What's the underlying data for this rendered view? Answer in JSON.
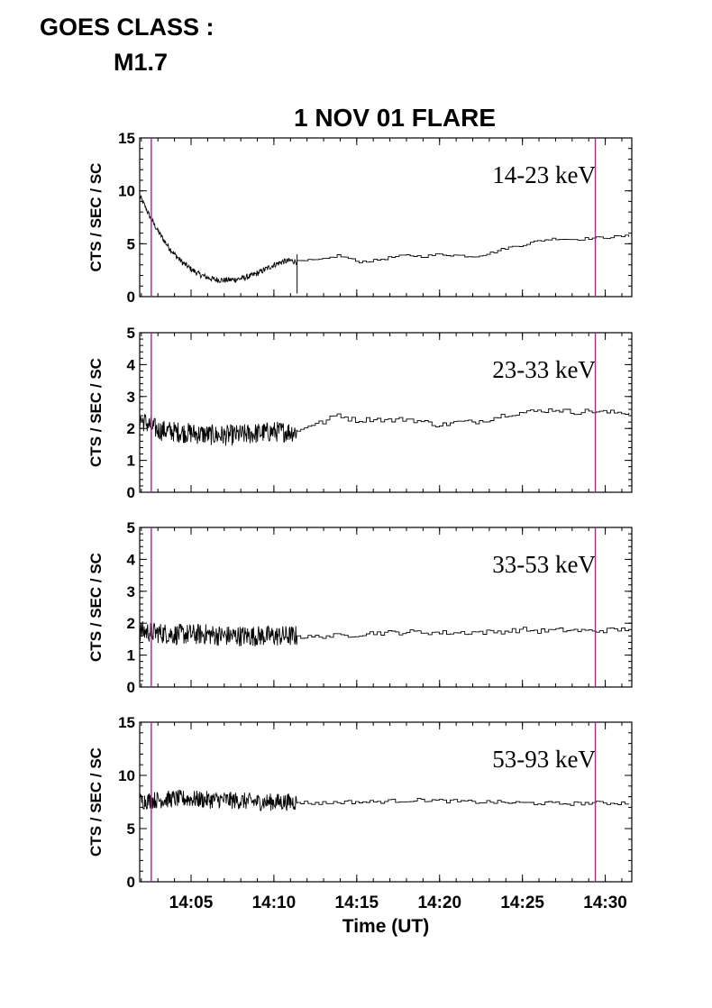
{
  "header": {
    "goes_line1": "GOES CLASS :",
    "goes_line2": "M1.7"
  },
  "chart_data": {
    "type": "line",
    "title": "1 NOV 01 FLARE",
    "xlabel": "Time (UT)",
    "ylabel": "CTS / SEC / SC",
    "x_units": "minutes of hour 14 (UT)",
    "xlim": [
      1.9,
      31.6
    ],
    "xticks": [
      {
        "value": 5,
        "label": "14:05"
      },
      {
        "value": 10,
        "label": "14:10"
      },
      {
        "value": 15,
        "label": "14:15"
      },
      {
        "value": 20,
        "label": "14:20"
      },
      {
        "value": 25,
        "label": "14:25"
      },
      {
        "value": 30,
        "label": "14:30"
      }
    ],
    "marker_lines": {
      "x": [
        2.6,
        29.4
      ],
      "color": "#b0209c"
    },
    "line_color": "#000000",
    "panels": [
      {
        "label": "14-23 keV",
        "ylim": [
          0,
          15
        ],
        "yticks": [
          0,
          5,
          10,
          15
        ],
        "points": [
          [
            1.9,
            9.5
          ],
          [
            2.2,
            8.6
          ],
          [
            2.5,
            7.6
          ],
          [
            3,
            6.2
          ],
          [
            3.5,
            5
          ],
          [
            4,
            4
          ],
          [
            4.5,
            3.2
          ],
          [
            5,
            2.6
          ],
          [
            5.5,
            2.1
          ],
          [
            6,
            1.8
          ],
          [
            6.5,
            1.6
          ],
          [
            7,
            1.55
          ],
          [
            7.5,
            1.6
          ],
          [
            8,
            1.7
          ],
          [
            8.5,
            1.9
          ],
          [
            9,
            2.2
          ],
          [
            9.5,
            2.6
          ],
          [
            10,
            3
          ],
          [
            10.5,
            3.3
          ],
          [
            11,
            3.4
          ],
          [
            11.4,
            3.3
          ],
          [
            12,
            3.4
          ],
          [
            13,
            3.5
          ],
          [
            13.8,
            3.9
          ],
          [
            14.5,
            3.6
          ],
          [
            15,
            3.3
          ],
          [
            16,
            3.4
          ],
          [
            17,
            3.7
          ],
          [
            18,
            3.9
          ],
          [
            19,
            3.8
          ],
          [
            20,
            4
          ],
          [
            21,
            3.9
          ],
          [
            22,
            3.8
          ],
          [
            23,
            4.1
          ],
          [
            24,
            4.6
          ],
          [
            25,
            4.9
          ],
          [
            26,
            5.3
          ],
          [
            27,
            5.5
          ],
          [
            28,
            5.4
          ],
          [
            29,
            5.5
          ],
          [
            30,
            5.6
          ],
          [
            31,
            5.7
          ],
          [
            31.6,
            5.7
          ]
        ]
      },
      {
        "label": "23-33 keV",
        "ylim": [
          0,
          5
        ],
        "yticks": [
          0,
          1,
          2,
          3,
          4,
          5
        ],
        "points": [
          [
            1.9,
            2.3
          ],
          [
            2.5,
            2.1
          ],
          [
            3,
            1.95
          ],
          [
            4,
            1.9
          ],
          [
            5,
            1.85
          ],
          [
            6,
            1.8
          ],
          [
            7,
            1.78
          ],
          [
            8,
            1.8
          ],
          [
            9,
            1.85
          ],
          [
            10,
            1.9
          ],
          [
            11.4,
            1.9
          ],
          [
            12,
            2.1
          ],
          [
            13,
            2.2
          ],
          [
            13.8,
            2.45
          ],
          [
            14.5,
            2.3
          ],
          [
            15,
            2.25
          ],
          [
            16,
            2.3
          ],
          [
            17,
            2.25
          ],
          [
            18,
            2.3
          ],
          [
            19,
            2.2
          ],
          [
            20,
            2.1
          ],
          [
            21,
            2.2
          ],
          [
            22,
            2.2
          ],
          [
            23,
            2.3
          ],
          [
            24,
            2.45
          ],
          [
            25,
            2.5
          ],
          [
            26,
            2.55
          ],
          [
            27,
            2.6
          ],
          [
            28,
            2.5
          ],
          [
            29,
            2.55
          ],
          [
            30,
            2.5
          ],
          [
            31,
            2.5
          ],
          [
            31.6,
            2.5
          ]
        ]
      },
      {
        "label": "33-53 keV",
        "ylim": [
          0,
          5
        ],
        "yticks": [
          0,
          1,
          2,
          3,
          4,
          5
        ],
        "points": [
          [
            1.9,
            1.75
          ],
          [
            3,
            1.7
          ],
          [
            4,
            1.65
          ],
          [
            5,
            1.65
          ],
          [
            6,
            1.65
          ],
          [
            7,
            1.6
          ],
          [
            8,
            1.6
          ],
          [
            9,
            1.6
          ],
          [
            10,
            1.6
          ],
          [
            11.4,
            1.6
          ],
          [
            12,
            1.55
          ],
          [
            13,
            1.6
          ],
          [
            14,
            1.6
          ],
          [
            15,
            1.65
          ],
          [
            16,
            1.7
          ],
          [
            17,
            1.7
          ],
          [
            18,
            1.72
          ],
          [
            19,
            1.72
          ],
          [
            20,
            1.7
          ],
          [
            21,
            1.7
          ],
          [
            22,
            1.72
          ],
          [
            23,
            1.72
          ],
          [
            24,
            1.75
          ],
          [
            25,
            1.8
          ],
          [
            26,
            1.75
          ],
          [
            27,
            1.78
          ],
          [
            28,
            1.78
          ],
          [
            29,
            1.75
          ],
          [
            30,
            1.78
          ],
          [
            31,
            1.8
          ],
          [
            31.6,
            1.85
          ]
        ]
      },
      {
        "label": "53-93 keV",
        "ylim": [
          0,
          15
        ],
        "yticks": [
          0,
          5,
          10,
          15
        ],
        "points": [
          [
            1.9,
            7.6
          ],
          [
            3,
            7.7
          ],
          [
            4,
            7.8
          ],
          [
            5,
            7.8
          ],
          [
            6,
            7.7
          ],
          [
            7,
            7.7
          ],
          [
            8,
            7.6
          ],
          [
            9,
            7.5
          ],
          [
            10,
            7.5
          ],
          [
            11.4,
            7.5
          ],
          [
            12,
            7.4
          ],
          [
            13,
            7.4
          ],
          [
            14,
            7.5
          ],
          [
            15,
            7.5
          ],
          [
            16,
            7.5
          ],
          [
            17,
            7.6
          ],
          [
            18,
            7.65
          ],
          [
            19,
            7.7
          ],
          [
            20,
            7.6
          ],
          [
            21,
            7.55
          ],
          [
            22,
            7.5
          ],
          [
            23,
            7.5
          ],
          [
            24,
            7.45
          ],
          [
            25,
            7.4
          ],
          [
            26,
            7.4
          ],
          [
            27,
            7.35
          ],
          [
            28,
            7.35
          ],
          [
            29,
            7.4
          ],
          [
            30,
            7.4
          ],
          [
            31,
            7.4
          ],
          [
            31.6,
            7.45
          ]
        ]
      }
    ]
  }
}
